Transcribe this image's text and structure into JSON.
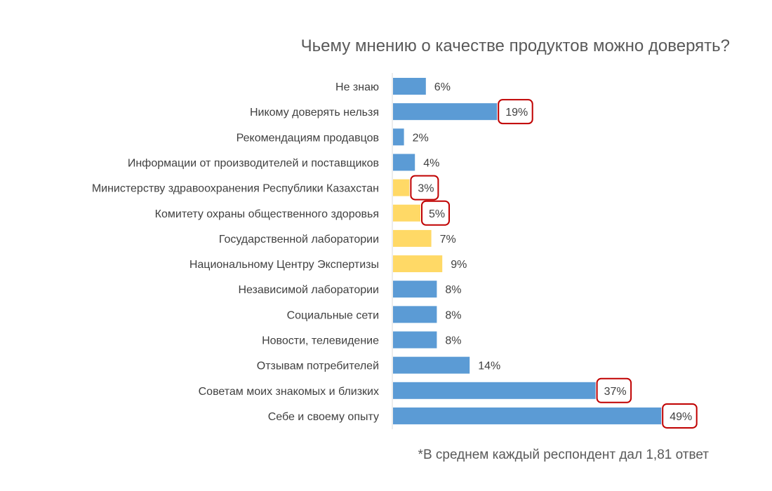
{
  "chart_data": {
    "type": "bar",
    "orientation": "horizontal",
    "title": "Чьему мнению о качестве продуктов можно доверять?",
    "note": "*В среднем каждый респондент дал 1,81 ответ",
    "categories": [
      "Не знаю",
      "Никому доверять нельзя",
      "Рекомендациям продавцов",
      "Информации от производителей и поставщиков",
      "Министерству здравоохранения Республики Казахстан",
      "Комитету охраны общественного здоровья",
      "Государственной лаборатории",
      "Национальному Центру Экспертизы",
      "Независимой лаборатории",
      "Социальные сети",
      "Новости, телевидение",
      "Отзывам потребителей",
      "Советам моих знакомых и близких",
      "Себе и своему опыту"
    ],
    "values": [
      6,
      19,
      2,
      4,
      3,
      5,
      7,
      9,
      8,
      8,
      8,
      14,
      37,
      49
    ],
    "labels": [
      "6%",
      "19%",
      "2%",
      "4%",
      "3%",
      "5%",
      "7%",
      "9%",
      "8%",
      "8%",
      "8%",
      "14%",
      "37%",
      "49%"
    ],
    "highlighted_bars": [
      false,
      false,
      false,
      false,
      true,
      true,
      true,
      true,
      false,
      false,
      false,
      false,
      false,
      false
    ],
    "circled_labels": [
      false,
      true,
      false,
      false,
      true,
      true,
      false,
      false,
      false,
      false,
      false,
      false,
      true,
      true
    ],
    "colors": {
      "default": "#5B9BD5",
      "highlight": "#FFD966",
      "circle": "#C00000",
      "axis": "#D9D9D9"
    },
    "unit": "%",
    "grid": false,
    "legend": "none"
  }
}
